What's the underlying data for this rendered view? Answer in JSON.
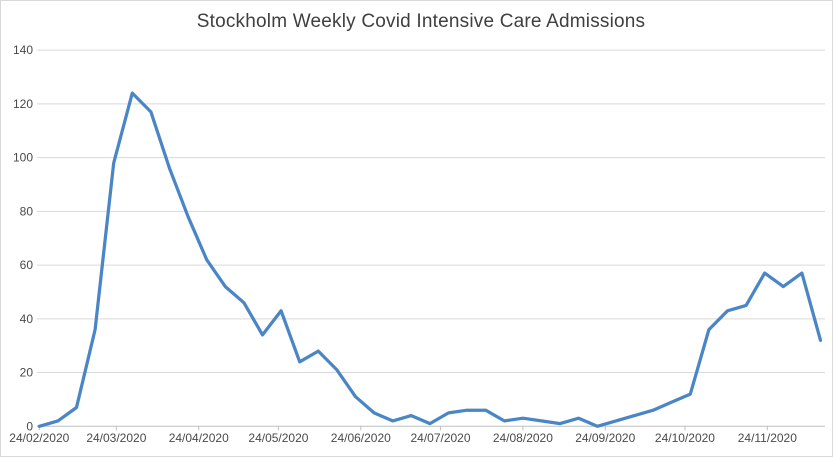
{
  "chart": {
    "title": "Stockholm Weekly Covid Intensive Care Admissions"
  },
  "chart_data": {
    "type": "line",
    "title": "Stockholm Weekly Covid Intensive Care Admissions",
    "xlabel": "",
    "ylabel": "",
    "legend": "none",
    "grid": "horizontal",
    "ylim": [
      0,
      140
    ],
    "y_ticks": [
      0,
      20,
      40,
      60,
      80,
      100,
      120,
      140
    ],
    "x_tick_labels": [
      "24/02/2020",
      "24/03/2020",
      "24/04/2020",
      "24/05/2020",
      "24/06/2020",
      "24/07/2020",
      "24/08/2020",
      "24/09/2020",
      "24/10/2020",
      "24/11/2020"
    ],
    "x": [
      "24/02/2020",
      "02/03/2020",
      "09/03/2020",
      "16/03/2020",
      "23/03/2020",
      "30/03/2020",
      "06/04/2020",
      "13/04/2020",
      "20/04/2020",
      "27/04/2020",
      "04/05/2020",
      "11/05/2020",
      "18/05/2020",
      "25/05/2020",
      "01/06/2020",
      "08/06/2020",
      "15/06/2020",
      "22/06/2020",
      "29/06/2020",
      "06/07/2020",
      "13/07/2020",
      "20/07/2020",
      "27/07/2020",
      "03/08/2020",
      "10/08/2020",
      "17/08/2020",
      "24/08/2020",
      "31/08/2020",
      "07/09/2020",
      "14/09/2020",
      "21/09/2020",
      "28/09/2020",
      "05/10/2020",
      "12/10/2020",
      "19/10/2020",
      "26/10/2020",
      "02/11/2020",
      "09/11/2020",
      "16/11/2020",
      "23/11/2020",
      "30/11/2020",
      "07/12/2020",
      "14/12/2020"
    ],
    "values": [
      0,
      2,
      7,
      36,
      98,
      124,
      117,
      96,
      78,
      62,
      52,
      46,
      34,
      43,
      24,
      28,
      21,
      11,
      5,
      2,
      4,
      1,
      5,
      6,
      6,
      2,
      3,
      2,
      1,
      3,
      0,
      2,
      4,
      6,
      9,
      12,
      36,
      43,
      45,
      57,
      52,
      57,
      32
    ],
    "colors": {
      "line": "#4A86C6",
      "gridline": "#D9D9D9",
      "axis": "#BFBFBF",
      "tick_label": "#4A4A4A",
      "title": "#3F3F3F",
      "background": "#FFFFFF",
      "frame_border": "#D9D9D9"
    }
  }
}
